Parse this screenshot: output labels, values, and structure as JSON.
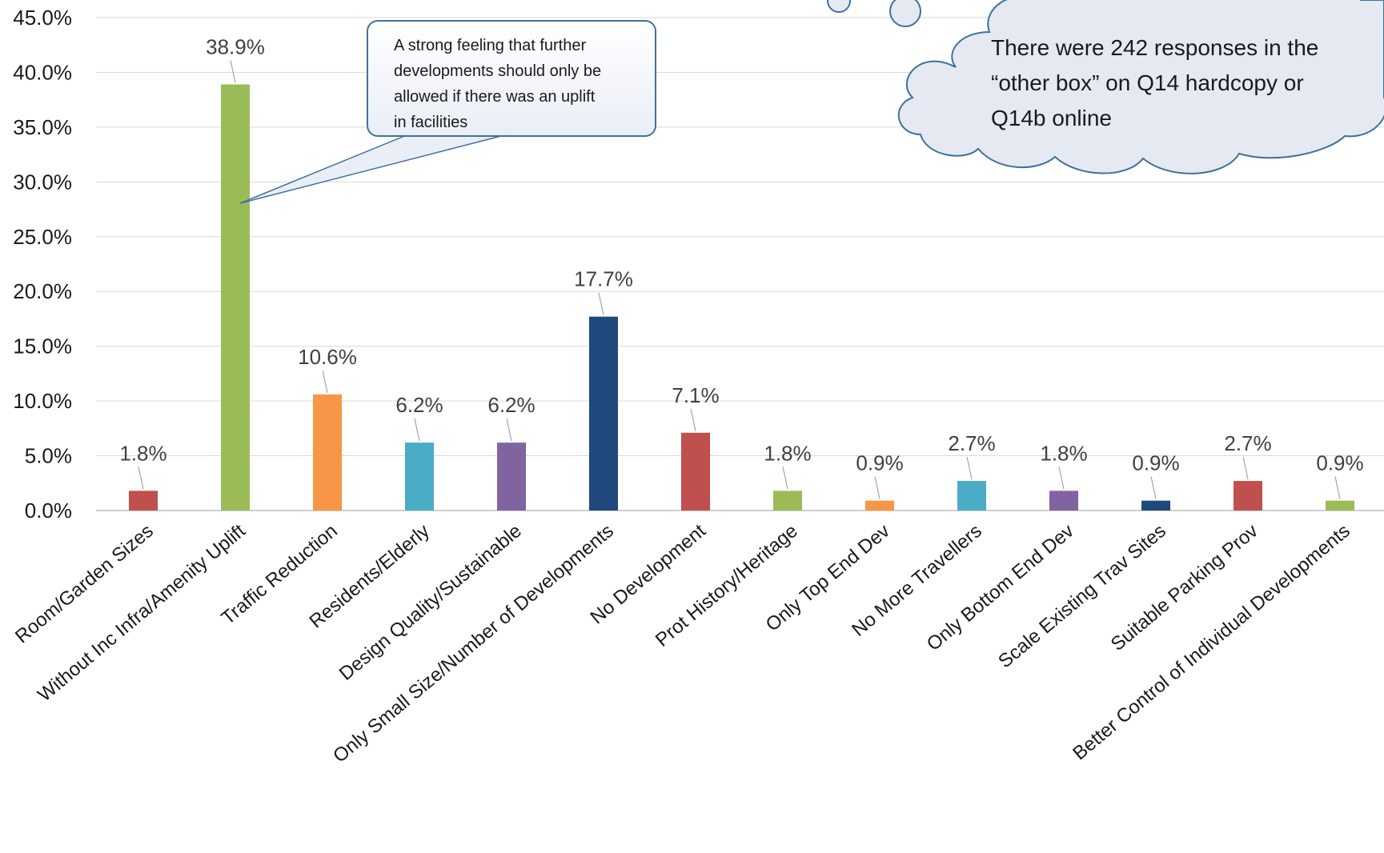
{
  "chart_data": {
    "type": "bar",
    "title": "",
    "xlabel": "",
    "ylabel": "",
    "ylim": [
      0,
      45
    ],
    "y_ticks": [
      "0.0%",
      "5.0%",
      "10.0%",
      "15.0%",
      "20.0%",
      "25.0%",
      "30.0%",
      "35.0%",
      "40.0%",
      "45.0%"
    ],
    "grid": true,
    "legend": "none",
    "categories": [
      "Room/Garden Sizes",
      "Without Inc Infra/Amenity Uplift",
      "Traffic Reduction",
      "Residents/Elderly",
      "Design Quality/Sustainable",
      "Only Small Size/Number of Developments",
      "No Development",
      "Prot History/Heritage",
      "Only Top End Dev",
      "No More Travellers",
      "Only Bottom End Dev",
      "Scale Existing Trav Sites",
      "Suitable Parking Prov",
      "Better Control of Individual Developments"
    ],
    "values": [
      1.8,
      38.9,
      10.6,
      6.2,
      6.2,
      17.7,
      7.1,
      1.8,
      0.9,
      2.7,
      1.8,
      0.9,
      2.7,
      0.9
    ],
    "data_labels": [
      "1.8%",
      "38.9%",
      "10.6%",
      "6.2%",
      "6.2%",
      "17.7%",
      "7.1%",
      "1.8%",
      "0.9%",
      "2.7%",
      "1.8%",
      "0.9%",
      "2.7%",
      "0.9%"
    ],
    "colors": [
      "#c0504d",
      "#9bbb59",
      "#f79646",
      "#4bacc6",
      "#8064a2",
      "#1f497d",
      "#c0504d",
      "#9bbb59",
      "#f79646",
      "#4bacc6",
      "#8064a2",
      "#1f497d",
      "#c0504d",
      "#9bbb59"
    ]
  },
  "annotations": {
    "callout_lines": [
      "A strong feeling that further",
      "developments should only be",
      "allowed if there was an uplift",
      "in facilities"
    ],
    "cloud_lines": [
      "There were 242 responses in the",
      "“other box” on Q14 hardcopy or",
      "Q14b online"
    ]
  }
}
